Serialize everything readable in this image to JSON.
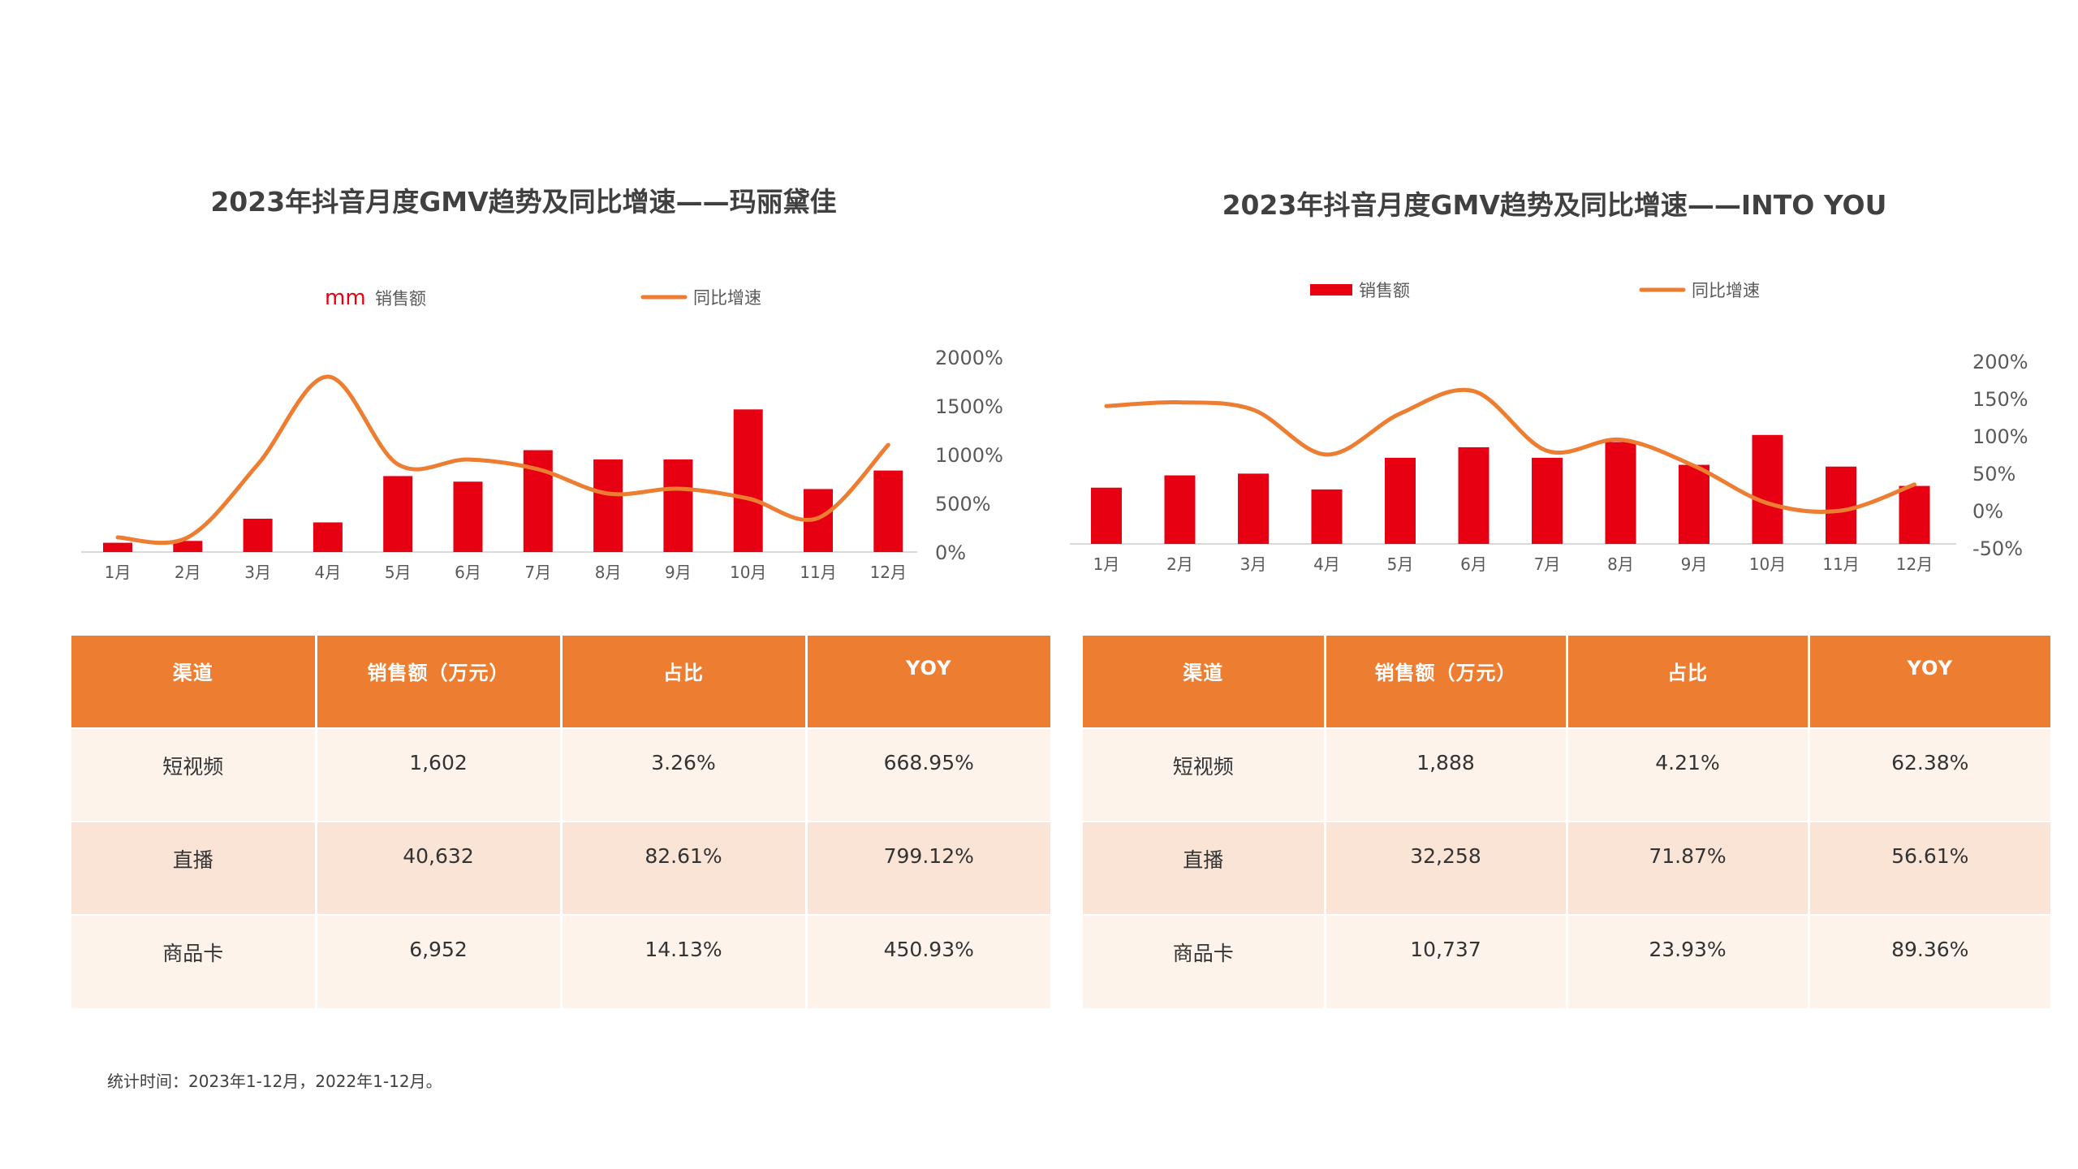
{
  "colors": {
    "bar": "#E60012",
    "line": "#ED7D31",
    "table_header_bg": "#ED7D31",
    "row_light": "#FDF3EA",
    "row_dark": "#F9E4D6",
    "axis": "#D9D9D9"
  },
  "chart_data": [
    {
      "type": "bar+line",
      "title": "2023年抖音月度GMV趋势及同比增速——玛丽黛佳",
      "categories": [
        "1月",
        "2月",
        "3月",
        "4月",
        "5月",
        "6月",
        "7月",
        "8月",
        "9月",
        "10月",
        "11月",
        "12月"
      ],
      "series": [
        {
          "name": "销售额",
          "type": "bar",
          "values": [
            0.5,
            0.6,
            1.8,
            1.6,
            4.1,
            3.8,
            5.5,
            5.0,
            5.0,
            7.7,
            3.4,
            4.4
          ]
        },
        {
          "name": "同比增速",
          "type": "line",
          "axis": "right",
          "values": [
            150,
            150,
            900,
            1800,
            900,
            950,
            850,
            600,
            650,
            550,
            350,
            1100
          ]
        }
      ],
      "legend": {
        "bar_label": "销售额",
        "bar_marker": "mm",
        "line_label": "同比增速"
      },
      "y2_ticks": [
        "0%",
        "500%",
        "1000%",
        "1500%",
        "2000%"
      ],
      "y2lim": [
        0,
        2000
      ],
      "ylim": [
        0,
        9
      ],
      "xlabel": "",
      "ylabel": ""
    },
    {
      "type": "bar+line",
      "title": "2023年抖音月度GMV趋势及同比增速——INTO YOU",
      "categories": [
        "1月",
        "2月",
        "3月",
        "4月",
        "5月",
        "6月",
        "7月",
        "8月",
        "9月",
        "10月",
        "11月",
        "12月"
      ],
      "series": [
        {
          "name": "销售额",
          "type": "bar",
          "values": [
            3.2,
            3.9,
            4.0,
            3.1,
            4.9,
            5.5,
            4.9,
            5.8,
            4.5,
            6.2,
            4.4,
            3.3
          ]
        },
        {
          "name": "同比增速",
          "type": "line",
          "axis": "right",
          "values": [
            140,
            145,
            135,
            75,
            130,
            160,
            80,
            95,
            60,
            10,
            0,
            35
          ]
        }
      ],
      "legend": {
        "bar_label": "销售额",
        "line_label": "同比增速"
      },
      "y2_ticks": [
        "-50%",
        "0%",
        "50%",
        "100%",
        "150%",
        "200%"
      ],
      "y2lim": [
        -50,
        200
      ],
      "ylim": [
        0,
        7
      ],
      "xlabel": "",
      "ylabel": ""
    }
  ],
  "tables": [
    {
      "headers": [
        "渠道",
        "销售额（万元）",
        "占比",
        "YOY"
      ],
      "rows": [
        [
          "短视频",
          "1,602",
          "3.26%",
          "668.95%"
        ],
        [
          "直播",
          "40,632",
          "82.61%",
          "799.12%"
        ],
        [
          "商品卡",
          "6,952",
          "14.13%",
          "450.93%"
        ]
      ]
    },
    {
      "headers": [
        "渠道",
        "销售额（万元）",
        "占比",
        "YOY"
      ],
      "rows": [
        [
          "短视频",
          "1,888",
          "4.21%",
          "62.38%"
        ],
        [
          "直播",
          "32,258",
          "71.87%",
          "56.61%"
        ],
        [
          "商品卡",
          "10,737",
          "23.93%",
          "89.36%"
        ]
      ]
    }
  ],
  "footnote": "统计时间：2023年1-12月，2022年1-12月。"
}
